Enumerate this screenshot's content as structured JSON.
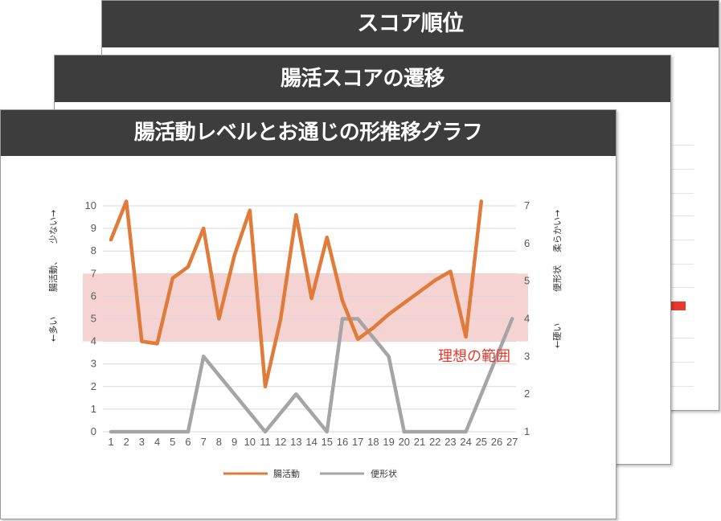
{
  "cards": {
    "back_title": "スコア順位",
    "middle_title": "腸活スコアの遷移",
    "front_title": "腸活動レベルとお通じの形推移グラフ"
  },
  "chart_data": {
    "type": "line",
    "x": [
      1,
      2,
      3,
      4,
      5,
      6,
      7,
      8,
      9,
      10,
      11,
      12,
      13,
      14,
      15,
      16,
      17,
      18,
      19,
      20,
      21,
      22,
      23,
      24,
      25,
      26,
      27
    ],
    "left_axis": {
      "min": 0,
      "max": 10,
      "ticks": [
        0,
        1,
        2,
        3,
        4,
        5,
        6,
        7,
        8,
        9,
        10
      ],
      "label_top": "少ない→",
      "label_mid": "腸活動、",
      "label_bottom": "←多い"
    },
    "right_axis": {
      "min": 1,
      "max": 7,
      "ticks": [
        1,
        2,
        3,
        4,
        5,
        6,
        7
      ],
      "label_top": "柔らかい→",
      "label_mid": "便形状",
      "label_bottom": "←硬い"
    },
    "ideal_band": {
      "left_min": 4,
      "left_max": 7,
      "label": "理想の範囲",
      "color": "#f6d3d3"
    },
    "grid": true,
    "legend_position": "bottom",
    "series": [
      {
        "name": "腸活動",
        "axis": "left",
        "color": "#e07b39",
        "values": [
          8.5,
          10.2,
          4.0,
          3.9,
          6.8,
          7.3,
          9.0,
          5.0,
          7.8,
          9.8,
          2.0,
          5.0,
          9.6,
          5.9,
          8.6,
          5.8,
          4.1,
          4.6,
          5.2,
          5.7,
          6.2,
          6.7,
          7.1,
          4.2,
          10.2,
          null,
          null
        ]
      },
      {
        "name": "便形状",
        "axis": "right",
        "color": "#a5a5a5",
        "values": [
          1,
          1,
          1,
          1,
          1,
          1,
          3,
          2.5,
          2,
          1.5,
          1,
          1.5,
          2,
          1.5,
          1,
          4,
          4,
          3.5,
          3,
          1,
          1,
          1,
          1,
          1,
          2,
          3,
          4
        ]
      }
    ]
  }
}
